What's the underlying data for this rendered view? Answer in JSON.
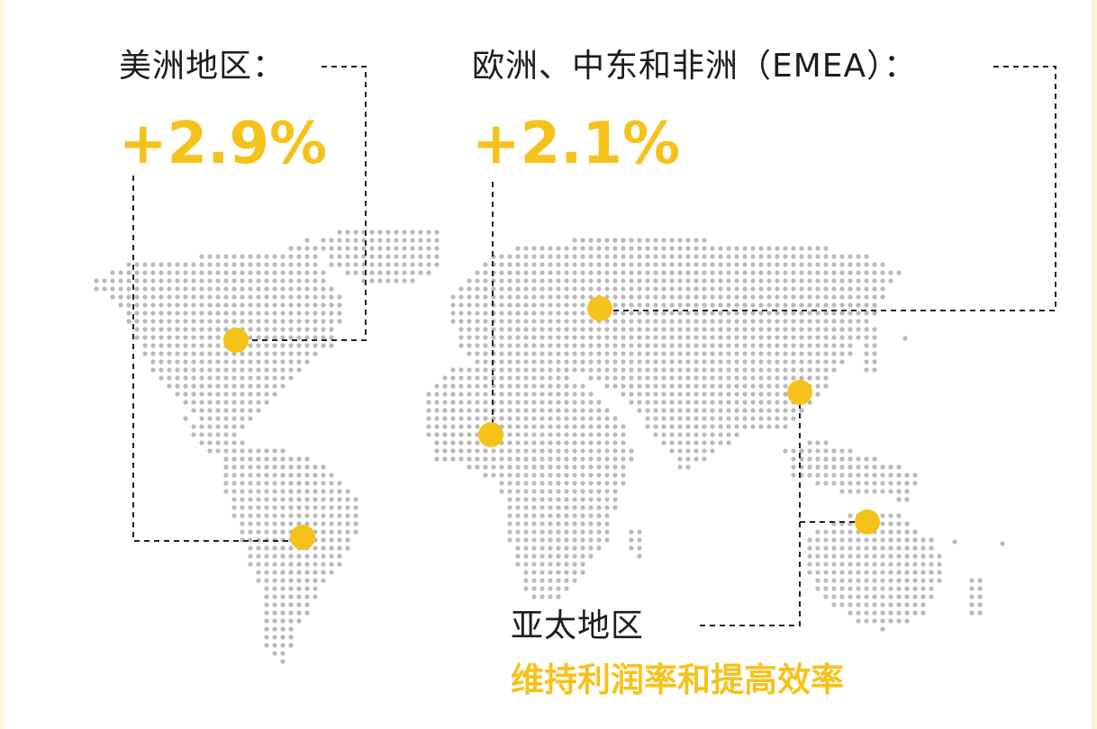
{
  "accent_color": "#f5c21b",
  "dot_color": "#b8b8b8",
  "line_color": "#222222",
  "regions": {
    "americas": {
      "label": "美洲地区：",
      "value": "+2.9%"
    },
    "emea": {
      "label": "欧洲、中东和非洲（EMEA）：",
      "value": "+2.1%"
    },
    "apac": {
      "label": "亚太地区",
      "value": "维持利润率和提高效率"
    }
  }
}
